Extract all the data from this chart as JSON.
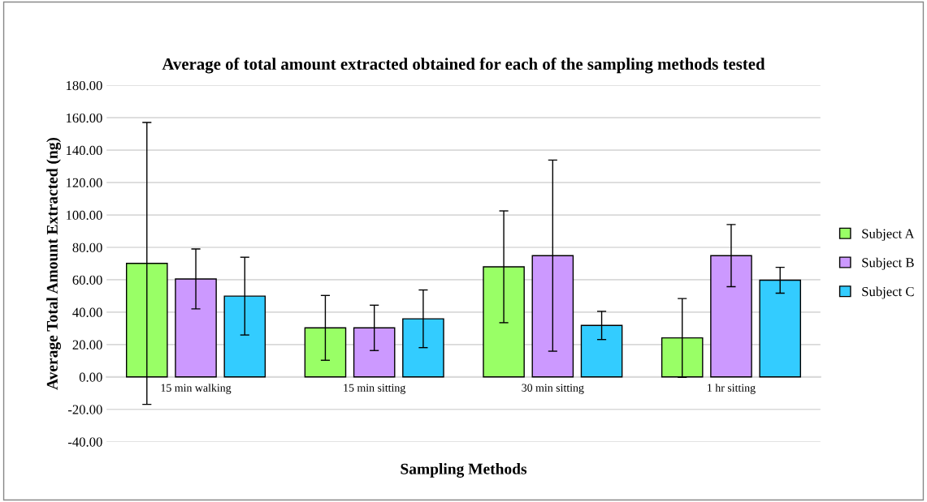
{
  "chart_data": {
    "type": "bar",
    "title": "Average of total amount extracted obtained for each of the sampling methods tested",
    "xlabel": "Sampling Methods",
    "ylabel": "Average Total Amount Extracted (ng)",
    "categories": [
      "15 min walking",
      "15 min sitting",
      "30 min sitting",
      "1 hr sitting"
    ],
    "series": [
      {
        "name": "Subject A",
        "color": "#99ff66",
        "values": [
          70.1,
          30.3,
          68.0,
          24.1
        ],
        "errors": [
          87,
          20,
          34.5,
          24.3
        ]
      },
      {
        "name": "Subject B",
        "color": "#cc99ff",
        "values": [
          60.5,
          30.3,
          74.9,
          74.9
        ],
        "errors": [
          18.5,
          14,
          59,
          19.2
        ]
      },
      {
        "name": "Subject C",
        "color": "#33ccff",
        "values": [
          49.9,
          35.9,
          31.8,
          59.7
        ],
        "errors": [
          24,
          17.8,
          8.7,
          8
        ]
      }
    ],
    "ylim": [
      -40,
      180
    ],
    "yticks": [
      {
        "value": -40,
        "label": "-40.00"
      },
      {
        "value": -20,
        "label": "-20.00"
      },
      {
        "value": 0,
        "label": "0.00"
      },
      {
        "value": 20,
        "label": "20.00"
      },
      {
        "value": 40,
        "label": "40.00"
      },
      {
        "value": 60,
        "label": "60.00"
      },
      {
        "value": 80,
        "label": "80.00"
      },
      {
        "value": 100,
        "label": "100.00"
      },
      {
        "value": 120,
        "label": "120.00"
      },
      {
        "value": 140,
        "label": "140.00"
      },
      {
        "value": 160,
        "label": "160.00"
      },
      {
        "value": 180,
        "label": "180.00"
      }
    ],
    "grid": "y",
    "legend": "right"
  }
}
